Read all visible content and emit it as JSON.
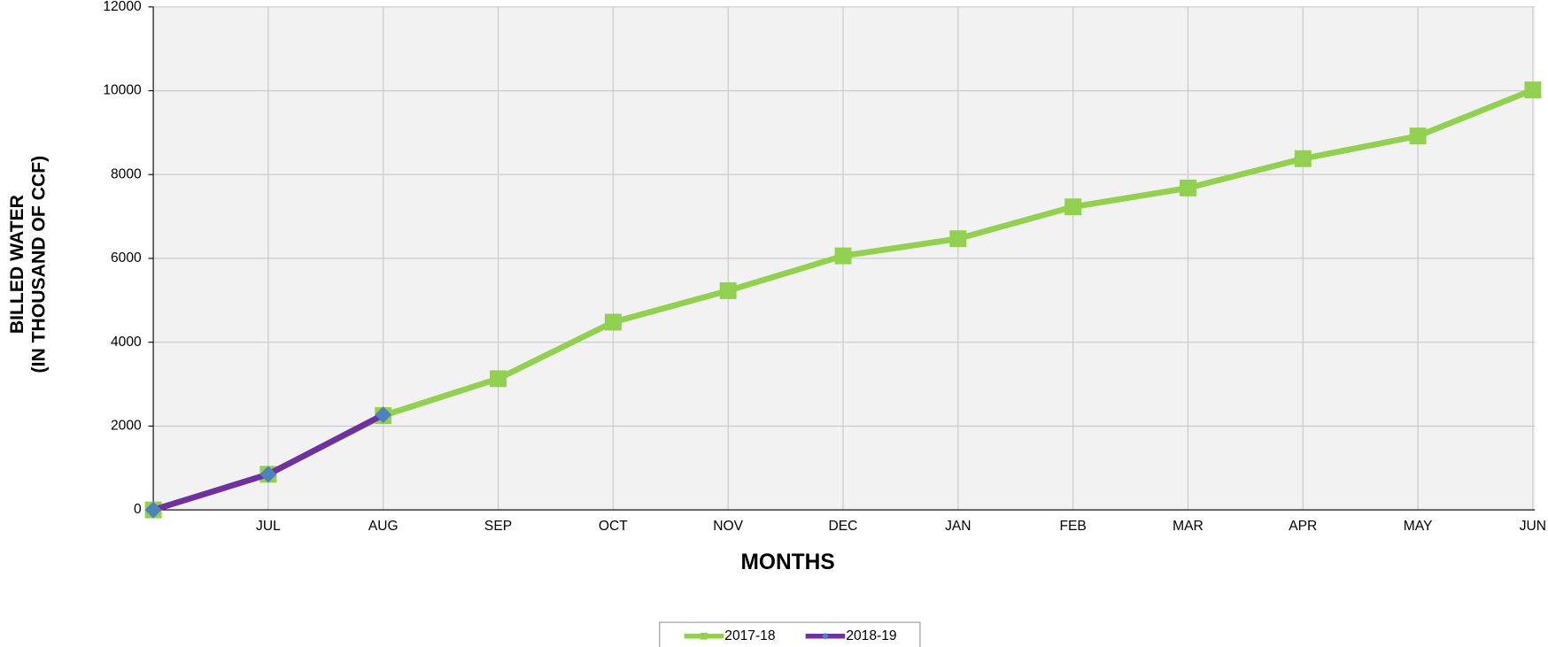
{
  "chart_data": {
    "type": "line",
    "x_label": "MONTHS",
    "y_label": [
      "BILLED  WATER",
      "(IN THOUSAND OF CCF)"
    ],
    "categories": [
      null,
      "JUL",
      "AUG",
      "SEP",
      "OCT",
      "NOV",
      "DEC",
      "JAN",
      "FEB",
      "MAR",
      "APR",
      "MAY",
      "JUN"
    ],
    "series": [
      {
        "name": "2017-18",
        "color": "#92d050",
        "marker": "square",
        "values": [
          0,
          850,
          2250,
          3130,
          4480,
          5230,
          6060,
          6470,
          7230,
          7680,
          8380,
          8920,
          10020
        ]
      },
      {
        "name": "2018-19",
        "color": "#7030a0",
        "marker": "diamond",
        "marker_color": "#4f81bd",
        "values": [
          0,
          850,
          2270,
          null,
          null,
          null,
          null,
          null,
          null,
          null,
          null,
          null,
          null
        ]
      }
    ],
    "ylim": [
      0,
      12000
    ],
    "yticks": [
      0,
      2000,
      4000,
      6000,
      8000,
      10000,
      12000
    ],
    "grid": true,
    "legend": "bottom"
  }
}
